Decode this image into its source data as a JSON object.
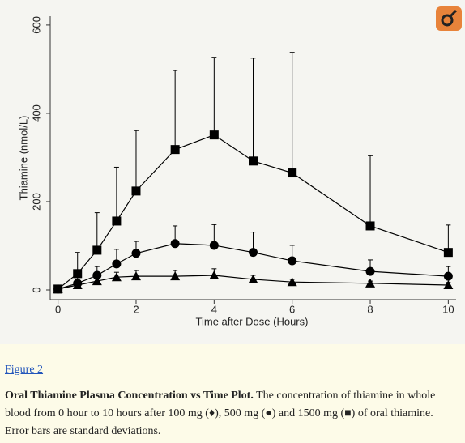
{
  "chart_data": {
    "type": "line",
    "x_label": "Time after Dose (Hours)",
    "y_label": "Thiamine (nmol/L)",
    "x": [
      0,
      0.5,
      1,
      1.5,
      2,
      3,
      4,
      5,
      6,
      8,
      10
    ],
    "series": [
      {
        "color": "#000000",
        "marker": "triangle",
        "values": [
          2,
          11,
          20,
          29,
          31,
          31,
          33,
          24,
          18,
          15,
          11
        ],
        "errors": [
          0,
          7,
          11,
          11,
          13,
          13,
          15,
          9,
          6,
          5,
          6
        ]
      },
      {
        "color": "#000000",
        "marker": "circle",
        "values": [
          2,
          15,
          33,
          59,
          83,
          105,
          101,
          85,
          66,
          42,
          31
        ],
        "errors": [
          0,
          13,
          20,
          33,
          27,
          40,
          47,
          46,
          35,
          26,
          22
        ]
      },
      {
        "color": "#000000",
        "marker": "square",
        "values": [
          2,
          37,
          90,
          156,
          224,
          318,
          351,
          292,
          265,
          145,
          85
        ],
        "errors": [
          0,
          48,
          85,
          122,
          137,
          179,
          176,
          233,
          273,
          159,
          62
        ]
      }
    ],
    "xlim": [
      -0.2,
      10.2
    ],
    "ylim": [
      -22,
      620
    ],
    "xticks": [
      0,
      2,
      4,
      6,
      8,
      10
    ],
    "yticks": [
      0,
      200,
      400,
      600
    ]
  },
  "caption": {
    "figure_label": "Figure 2",
    "title": "Oral Thiamine Plasma Concentration vs Time Plot.",
    "text": "The concentration of thiamine in whole blood from 0 hour to 10 hours after 100 mg (♦), 500 mg (●) and 1500 mg (■) of oral thiamine. Error bars are standard deviations."
  }
}
